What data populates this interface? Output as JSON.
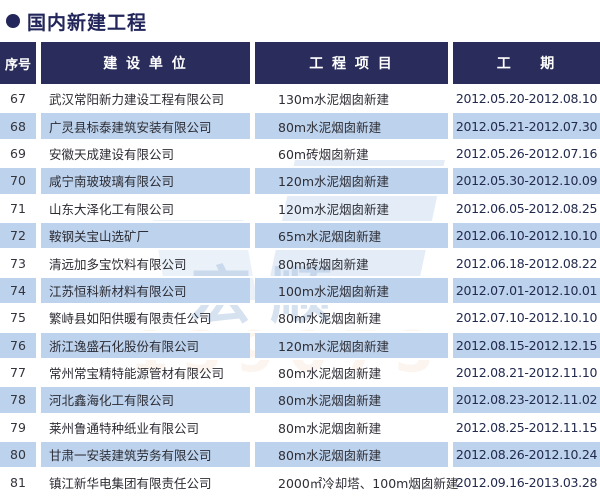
{
  "title": "国内新建工程",
  "table": {
    "headers": [
      "序号",
      "建 设 单 位",
      "工 程 项 目",
      "工    期"
    ],
    "rows": [
      {
        "no": "67",
        "company": "武汉常阳新力建设工程有限公司",
        "project": "130m水泥烟囱新建",
        "period": "2012.05.20-2012.08.10"
      },
      {
        "no": "68",
        "company": "广灵县标泰建筑安装有限公司",
        "project": "80m水泥烟囱新建",
        "period": "2012.05.21-2012.07.30"
      },
      {
        "no": "69",
        "company": "安徽天成建设有限公司",
        "project": "60m砖烟囱新建",
        "period": "2012.05.26-2012.07.16"
      },
      {
        "no": "70",
        "company": "咸宁南玻玻璃有限公司",
        "project": "120m水泥烟囱新建",
        "period": "2012.05.30-2012.10.09"
      },
      {
        "no": "71",
        "company": "山东大泽化工有限公司",
        "project": "120m水泥烟囱新建",
        "period": "2012.06.05-2012.08.25"
      },
      {
        "no": "72",
        "company": "鞍钢关宝山选矿厂",
        "project": "65m水泥烟囱新建",
        "period": "2012.06.10-2012.10.10"
      },
      {
        "no": "73",
        "company": "清远加多宝饮料有限公司",
        "project": "80m砖烟囱新建",
        "period": "2012.06.18-2012.08.22"
      },
      {
        "no": "74",
        "company": "江苏恒科新材料有限公司",
        "project": "100m水泥烟囱新建",
        "period": "2012.07.01-2012.10.01"
      },
      {
        "no": "75",
        "company": "繁峙县如阳供暖有限责任公司",
        "project": "80m水泥烟囱新建",
        "period": "2012.07.10-2012.10.10"
      },
      {
        "no": "76",
        "company": "浙江逸盛石化股份有限公司",
        "project": "120m水泥烟囱新建",
        "period": "2012.08.15-2012.12.15"
      },
      {
        "no": "77",
        "company": "常州常宝精特能源管材有限公司",
        "project": "80m水泥烟囱新建",
        "period": "2012.08.21-2012.11.10"
      },
      {
        "no": "78",
        "company": "河北鑫海化工有限公司",
        "project": "80m水泥烟囱新建",
        "period": "2012.08.23-2012.11.02"
      },
      {
        "no": "79",
        "company": "莱州鲁通特种纸业有限公司",
        "project": "80m水泥烟囱新建",
        "period": "2012.08.25-2012.11.15"
      },
      {
        "no": "80",
        "company": "甘肃一安装建筑劳务有限公司",
        "project": "80m水泥烟囱新建",
        "period": "2012.08.26-2012.10.24"
      },
      {
        "no": "81",
        "company": "镇江新华电集团有限责任公司",
        "project": "2000㎡冷却塔、100m烟囱新建",
        "period": "2012.09.16-2013.03.28"
      }
    ]
  },
  "watermark": {
    "logo_char": "宏顺",
    "phone_fragment": "139073"
  },
  "colors": {
    "header_navy": "#2a2d5b",
    "title_navy": "#22265a",
    "stripe_blue": "#bdd2ec"
  }
}
